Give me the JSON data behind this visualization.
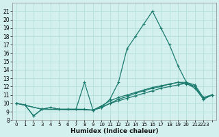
{
  "xlabel": "Humidex (Indice chaleur)",
  "bg_color": "#d4f0ee",
  "grid_color": "#b8e0dc",
  "line_color": "#1a7a6e",
  "series": [
    {
      "x": [
        0,
        1,
        2,
        3,
        4,
        5,
        6,
        7,
        8,
        9,
        10,
        11,
        12,
        13,
        14,
        15,
        16,
        17,
        18,
        19,
        20,
        21,
        22,
        23
      ],
      "y": [
        10,
        9.8,
        8.5,
        9.3,
        9.5,
        9.3,
        9.3,
        9.3,
        9.3,
        9.2,
        9.5,
        10.5,
        12.5,
        16.5,
        18.0,
        19.5,
        21.0,
        19.0,
        17.0,
        14.5,
        12.5,
        12.0,
        10.5,
        11.0
      ]
    },
    {
      "x": [
        0,
        1,
        2,
        3,
        4,
        5,
        6,
        7,
        8,
        9,
        10,
        11,
        12,
        13,
        14,
        15,
        16,
        17,
        18,
        19,
        20,
        21,
        22,
        23
      ],
      "y": [
        10,
        9.8,
        8.5,
        9.3,
        9.5,
        9.3,
        9.3,
        9.3,
        12.5,
        9.2,
        9.5,
        10.0,
        10.5,
        10.8,
        11.2,
        11.5,
        11.8,
        12.0,
        12.3,
        12.5,
        12.5,
        12.2,
        10.7,
        11.0
      ]
    },
    {
      "x": [
        0,
        3,
        9,
        10,
        11,
        12,
        13,
        14,
        15,
        16,
        17,
        18,
        19,
        20,
        21,
        22,
        23
      ],
      "y": [
        10,
        9.3,
        9.2,
        9.5,
        10.0,
        10.3,
        10.6,
        10.9,
        11.2,
        11.5,
        11.8,
        12.0,
        12.2,
        12.4,
        11.8,
        10.5,
        11.0
      ]
    },
    {
      "x": [
        0,
        3,
        9,
        10,
        11,
        12,
        13,
        14,
        15,
        16,
        17,
        18,
        19,
        20,
        21,
        22,
        23
      ],
      "y": [
        10,
        9.3,
        9.2,
        9.7,
        10.3,
        10.7,
        11.0,
        11.3,
        11.6,
        11.9,
        12.1,
        12.3,
        12.5,
        12.3,
        12.0,
        10.5,
        11.0
      ]
    }
  ],
  "xlim": [
    -0.5,
    23.5
  ],
  "ylim": [
    8,
    22
  ],
  "yticks": [
    8,
    9,
    10,
    11,
    12,
    13,
    14,
    15,
    16,
    17,
    18,
    19,
    20,
    21
  ],
  "xticks": [
    0,
    1,
    2,
    3,
    4,
    5,
    6,
    7,
    8,
    9,
    10,
    11,
    12,
    13,
    14,
    15,
    16,
    17,
    18,
    19,
    20,
    21,
    22,
    23
  ],
  "xtick_labels": [
    "0",
    "1",
    "2",
    "3",
    "4",
    "5",
    "6",
    "7",
    "8",
    "9",
    "10",
    "11",
    "12",
    "13",
    "14",
    "15",
    "16",
    "17",
    "18",
    "19",
    "20",
    "21",
    "2223",
    ""
  ]
}
